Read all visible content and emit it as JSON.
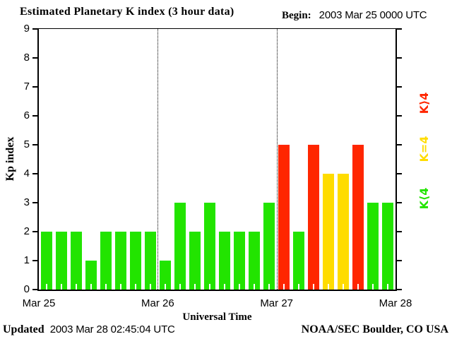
{
  "header": {
    "title": "Estimated Planetary K index (3 hour data)",
    "begin_label": "Begin:",
    "begin_value": "2003 Mar 25 0000 UTC"
  },
  "footer": {
    "updated_label": "Updated",
    "updated_value": "2003 Mar 28 02:45:04 UTC",
    "credit": "NOAA/SEC Boulder, CO USA"
  },
  "chart_data": {
    "type": "bar",
    "title": "Estimated Planetary K index (3 hour data)",
    "xlabel": "Universal Time",
    "ylabel": "Kp index",
    "ylim": [
      0,
      9
    ],
    "y_ticks": [
      0,
      1,
      2,
      3,
      4,
      5,
      6,
      7,
      8,
      9
    ],
    "x_day_labels": [
      "Mar 25",
      "Mar 26",
      "Mar 27",
      "Mar 28"
    ],
    "bars_per_day": 8,
    "bar_interval_hours": 3,
    "values": [
      2,
      2,
      2,
      1,
      2,
      2,
      2,
      2,
      1,
      3,
      2,
      3,
      2,
      2,
      2,
      3,
      5,
      2,
      5,
      4,
      4,
      5,
      3,
      3
    ],
    "color_rule": {
      "below_4": "#22E400",
      "equal_4": "#FFDC00",
      "above_4": "#FF2600"
    },
    "legend": [
      {
        "label": "K>4",
        "display": "K⟩4",
        "color": "#FF2600"
      },
      {
        "label": "K=4",
        "display": "K=4",
        "color": "#FFDC00"
      },
      {
        "label": "K<4",
        "display": "K⟨4",
        "color": "#22E400"
      }
    ],
    "grid": "dotted vertical lines at day boundaries",
    "legend_position": "right"
  }
}
